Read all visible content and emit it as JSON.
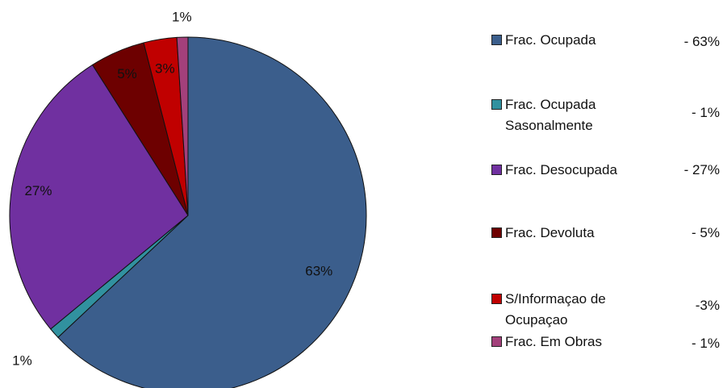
{
  "chart_data": {
    "type": "pie",
    "categories": [
      "Frac. Ocupada",
      "Frac.  Ocupada\nSasonalmente",
      "Frac.  Desocupada",
      "Frac.  Devoluta",
      "S/Informaçao de\nOcupaçao",
      "Frac.  Em Obras"
    ],
    "values": [
      63,
      1,
      27,
      5,
      3,
      1
    ],
    "value_labels": [
      "63%",
      "1%",
      "27%",
      "5%",
      "3%",
      "1%"
    ],
    "legend_values": [
      "- 63%",
      "- 1%",
      "- 27%",
      "- 5%",
      "-3%",
      "- 1%"
    ],
    "colors": [
      "#3b5e8c",
      "#31919f",
      "#7030a0",
      "#6d0000",
      "#c00000",
      "#a3407b"
    ]
  }
}
